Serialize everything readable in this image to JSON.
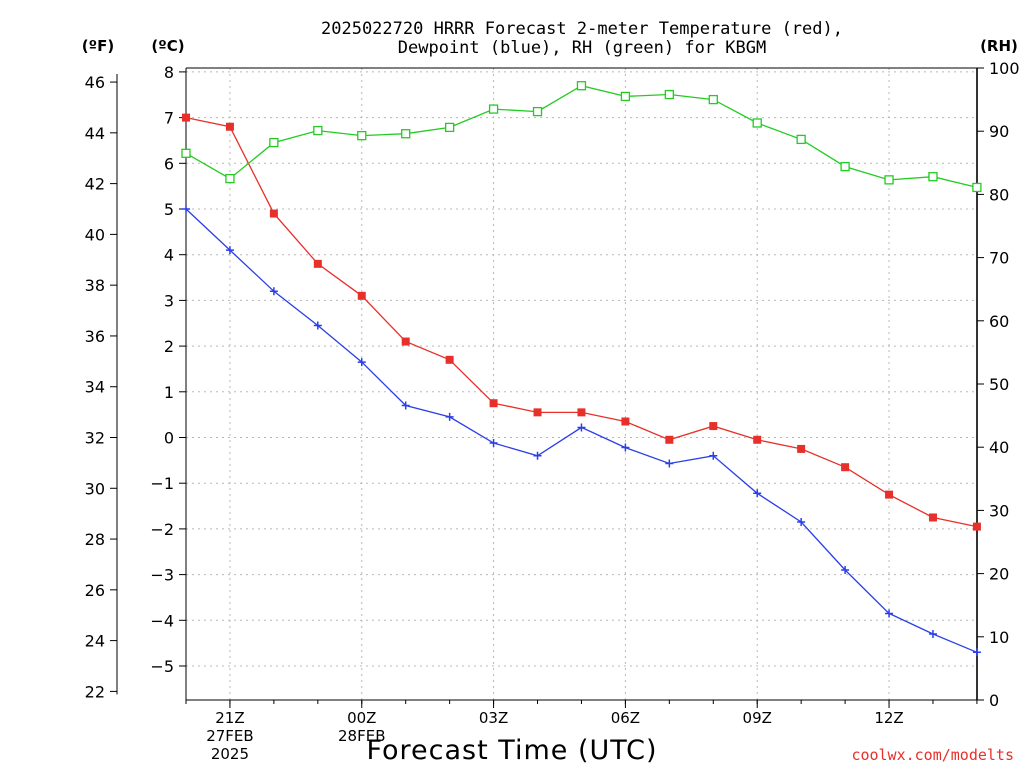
{
  "header": {
    "title_line1": "2025022720 HRRR Forecast 2-meter Temperature (red),",
    "title_line2": "Dewpoint (blue), RH (green) for KBGM"
  },
  "units": {
    "left_outer": "(ºF)",
    "left_inner": "(ºC)",
    "right": "(RH)"
  },
  "footer": {
    "credit": "coolwx.com/modelts"
  },
  "chart_data": {
    "type": "line",
    "title": "2025022720 HRRR Forecast 2-meter Temperature (red), Dewpoint (blue), RH (green) for KBGM",
    "xlabel": "Forecast Time (UTC)",
    "x": [
      "20Z",
      "21Z",
      "22Z",
      "23Z",
      "00Z",
      "01Z",
      "02Z",
      "03Z",
      "04Z",
      "05Z",
      "06Z",
      "07Z",
      "08Z",
      "09Z",
      "10Z",
      "11Z",
      "12Z",
      "13Z",
      "14Z"
    ],
    "x_ticks": [
      {
        "label": "21Z",
        "sub": [
          "27FEB",
          "2025"
        ]
      },
      {
        "label": "00Z",
        "sub": [
          "28FEB"
        ]
      },
      {
        "label": "03Z",
        "sub": []
      },
      {
        "label": "06Z",
        "sub": []
      },
      {
        "label": "09Z",
        "sub": []
      },
      {
        "label": "12Z",
        "sub": []
      }
    ],
    "y_celsius": {
      "label": "(ºC)",
      "range": [
        -5.7,
        8
      ],
      "ticks": [
        8,
        7,
        6,
        5,
        4,
        3,
        2,
        1,
        0,
        -1,
        -2,
        -3,
        -4,
        -5
      ]
    },
    "y_fahrenheit": {
      "label": "(ºF)",
      "ticks": [
        46,
        44,
        42,
        40,
        38,
        36,
        34,
        32,
        30,
        28,
        26,
        24,
        22
      ]
    },
    "y_rh": {
      "label": "(RH)",
      "range": [
        0,
        100
      ],
      "ticks": [
        100,
        90,
        80,
        70,
        60,
        50,
        40,
        30,
        20,
        10,
        0
      ]
    },
    "grid": true,
    "series": [
      {
        "name": "Temperature",
        "axis": "celsius",
        "color": "#e8302a",
        "marker": "filled-square",
        "values": [
          7.0,
          6.8,
          4.9,
          3.8,
          3.1,
          2.1,
          1.7,
          0.75,
          0.55,
          0.55,
          0.35,
          -0.05,
          0.25,
          -0.05,
          -0.25,
          -0.65,
          -1.25,
          -1.75,
          -1.95
        ]
      },
      {
        "name": "Dewpoint",
        "axis": "celsius",
        "color": "#2a3fe8",
        "marker": "plus",
        "values": [
          5.0,
          4.1,
          3.2,
          2.45,
          1.65,
          0.7,
          0.45,
          -0.12,
          -0.4,
          0.22,
          -0.22,
          -0.57,
          -0.4,
          -1.22,
          -1.85,
          -2.9,
          -3.85,
          -4.3,
          -4.7
        ]
      },
      {
        "name": "RH",
        "axis": "rh",
        "color": "#22cc22",
        "marker": "open-square",
        "values": [
          86.5,
          82.5,
          88.2,
          90.1,
          89.3,
          89.6,
          90.6,
          93.5,
          93.1,
          97.2,
          95.5,
          95.8,
          95.0,
          91.3,
          88.7,
          84.4,
          82.3,
          82.8,
          81.1
        ]
      }
    ]
  }
}
